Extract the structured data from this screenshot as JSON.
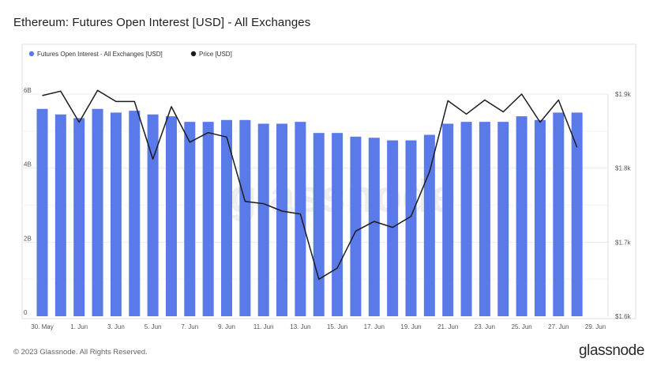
{
  "title": "Ethereum: Futures Open Interest [USD] - All Exchanges",
  "watermark": "glassnode",
  "footer": {
    "copyright": "© 2023 Glassnode. All Rights Reserved.",
    "brand": "glassnode"
  },
  "colors": {
    "bar": "#5b7ae9",
    "price_line": "#1c1c1c",
    "grid": "#ececec"
  },
  "chart_data": {
    "type": "bar",
    "title": "Ethereum: Futures Open Interest [USD] - All Exchanges",
    "xlabel": "",
    "ylabel": "",
    "legend_position": "top-left",
    "grid": true,
    "x_ticks": [
      "30. May",
      "1. Jun",
      "3. Jun",
      "5. Jun",
      "7. Jun",
      "9. Jun",
      "11. Jun",
      "13. Jun",
      "15. Jun",
      "17. Jun",
      "19. Jun",
      "21. Jun",
      "23. Jun",
      "25. Jun",
      "27. Jun",
      "29. Jun"
    ],
    "x_tick_indices": [
      0,
      2,
      4,
      6,
      8,
      10,
      12,
      14,
      16,
      18,
      20,
      22,
      24,
      26,
      28,
      30
    ],
    "categories": [
      "30. May",
      "31. May",
      "1. Jun",
      "2. Jun",
      "3. Jun",
      "4. Jun",
      "5. Jun",
      "6. Jun",
      "7. Jun",
      "8. Jun",
      "9. Jun",
      "10. Jun",
      "11. Jun",
      "12. Jun",
      "13. Jun",
      "14. Jun",
      "15. Jun",
      "16. Jun",
      "17. Jun",
      "18. Jun",
      "19. Jun",
      "20. Jun",
      "21. Jun",
      "22. Jun",
      "23. Jun",
      "24. Jun",
      "25. Jun",
      "26. Jun",
      "27. Jun",
      "28. Jun"
    ],
    "y_left": {
      "ticks": [
        "0",
        "2B",
        "4B",
        "6B"
      ],
      "tick_values": [
        0,
        2,
        4,
        6
      ],
      "range": [
        0,
        6
      ],
      "unit": "B"
    },
    "y_right": {
      "ticks": [
        "$1.6k",
        "$1.7k",
        "$1.8k",
        "$1.9k"
      ],
      "tick_values": [
        1600,
        1700,
        1800,
        1900
      ],
      "range": [
        1600,
        1900
      ],
      "scale": "linear"
    },
    "series": [
      {
        "name": "Futures Open Interest - All Exchanges [USD]",
        "kind": "bar",
        "axis": "left",
        "values": [
          5.6,
          5.45,
          5.35,
          5.6,
          5.5,
          5.55,
          5.45,
          5.4,
          5.25,
          5.25,
          5.3,
          5.3,
          5.2,
          5.2,
          5.25,
          4.95,
          4.95,
          4.85,
          4.82,
          4.75,
          4.75,
          4.9,
          5.2,
          5.25,
          5.25,
          5.25,
          5.4,
          5.3,
          5.5,
          5.5
        ]
      },
      {
        "name": "Price [USD]",
        "kind": "line",
        "axis": "right",
        "values": [
          1898,
          1904,
          1862,
          1905,
          1890,
          1890,
          1812,
          1883,
          1835,
          1848,
          1842,
          1755,
          1752,
          1742,
          1738,
          1650,
          1665,
          1715,
          1728,
          1720,
          1735,
          1795,
          1891,
          1873,
          1892,
          1876,
          1900,
          1862,
          1892,
          1828
        ]
      }
    ]
  }
}
